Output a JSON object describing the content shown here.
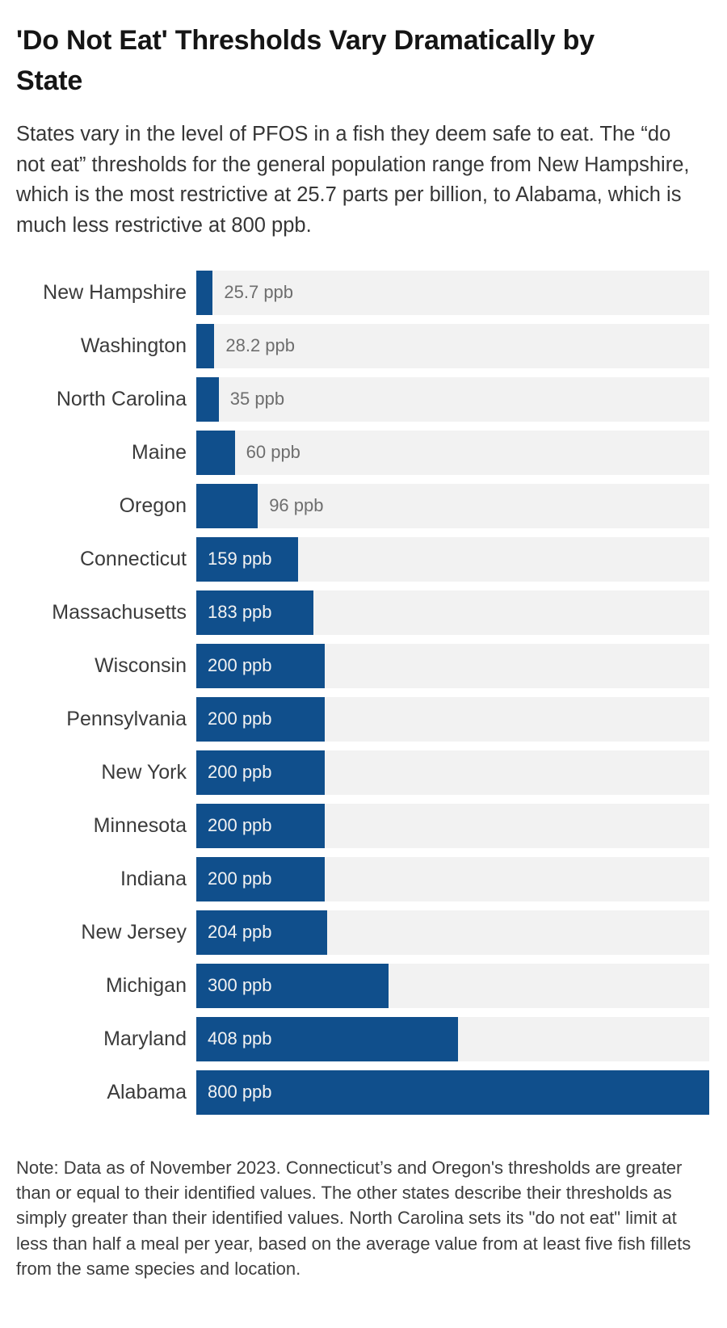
{
  "header": {
    "title": "'Do Not Eat' Thresholds Vary Dramatically by State",
    "description": "States vary in the level of PFOS in a fish they deem safe to eat. The “do not eat” thresholds for the general population range from New Hampshire, which is the most restrictive at 25.7 parts per billion, to Alabama, which is much less restrictive at 800 ppb."
  },
  "chart_data": {
    "type": "bar",
    "orientation": "horizontal",
    "title": "'Do Not Eat' Thresholds Vary Dramatically by State",
    "xlabel": "",
    "ylabel": "",
    "unit": "ppb",
    "xlim": [
      0,
      800
    ],
    "grid": false,
    "legend": "none",
    "bar_color": "#104f8c",
    "track_color": "#f2f2f2",
    "inside_label_color": "#f2f2f2",
    "outside_label_color": "#6e6e6e",
    "categories": [
      "New Hampshire",
      "Washington",
      "North Carolina",
      "Maine",
      "Oregon",
      "Connecticut",
      "Massachusetts",
      "Wisconsin",
      "Pennsylvania",
      "New York",
      "Minnesota",
      "Indiana",
      "New Jersey",
      "Michigan",
      "Maryland",
      "Alabama"
    ],
    "values": [
      25.7,
      28.2,
      35,
      60,
      96,
      159,
      183,
      200,
      200,
      200,
      200,
      200,
      204,
      300,
      408,
      800
    ],
    "rows": [
      {
        "state": "New Hampshire",
        "value": 25.7,
        "label": "25.7 ppb",
        "label_inside": false
      },
      {
        "state": "Washington",
        "value": 28.2,
        "label": "28.2 ppb",
        "label_inside": false
      },
      {
        "state": "North Carolina",
        "value": 35,
        "label": "35 ppb",
        "label_inside": false
      },
      {
        "state": "Maine",
        "value": 60,
        "label": "60 ppb",
        "label_inside": false
      },
      {
        "state": "Oregon",
        "value": 96,
        "label": "96 ppb",
        "label_inside": false
      },
      {
        "state": "Connecticut",
        "value": 159,
        "label": "159 ppb",
        "label_inside": true
      },
      {
        "state": "Massachusetts",
        "value": 183,
        "label": "183 ppb",
        "label_inside": true
      },
      {
        "state": "Wisconsin",
        "value": 200,
        "label": "200 ppb",
        "label_inside": true
      },
      {
        "state": "Pennsylvania",
        "value": 200,
        "label": "200 ppb",
        "label_inside": true
      },
      {
        "state": "New York",
        "value": 200,
        "label": "200 ppb",
        "label_inside": true
      },
      {
        "state": "Minnesota",
        "value": 200,
        "label": "200 ppb",
        "label_inside": true
      },
      {
        "state": "Indiana",
        "value": 200,
        "label": "200 ppb",
        "label_inside": true
      },
      {
        "state": "New Jersey",
        "value": 204,
        "label": "204 ppb",
        "label_inside": true
      },
      {
        "state": "Michigan",
        "value": 300,
        "label": "300 ppb",
        "label_inside": true
      },
      {
        "state": "Maryland",
        "value": 408,
        "label": "408 ppb",
        "label_inside": true
      },
      {
        "state": "Alabama",
        "value": 800,
        "label": "800 ppb",
        "label_inside": true
      }
    ]
  },
  "footer": {
    "note": "Note: Data as of November 2023. Connecticut’s and Oregon's thresholds are greater than or equal to their identified values. The other states describe their thresholds as simply greater than their identified values. North Carolina sets its \"do not eat\" limit at less than half a meal per year, based on the average value from at least five fish fillets from the same species and location."
  }
}
